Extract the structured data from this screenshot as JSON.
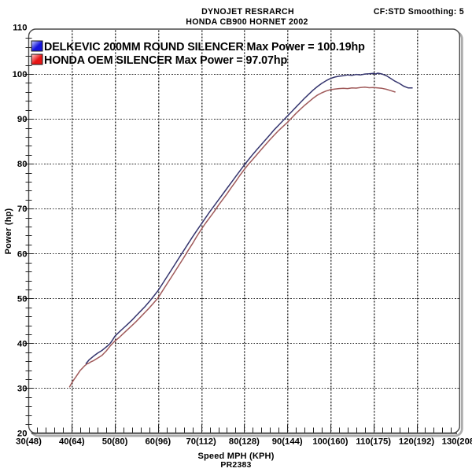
{
  "header": {
    "title_line1": "DYNOJET RESRARCH",
    "title_line2": "HONDA CB900 HORNET 2002",
    "top_right": "CF:STD Smoothing: 5"
  },
  "footer": {
    "code": "PR2383"
  },
  "legend": [
    {
      "label": "DELKEVIC 200MM ROUND SILENCER Max Power = 100.19hp",
      "swatch_color": "#1414dc",
      "swatch_light": "#ccd6ff"
    },
    {
      "label": "HONDA OEM SILENCER Max Power = 97.07hp",
      "swatch_color": "#e81616",
      "swatch_light": "#ffd2d2"
    }
  ],
  "axes": {
    "y_title": "Power (hp)",
    "x_title": "Speed MPH (KPH)",
    "y_ticks": [
      110,
      100,
      90,
      80,
      70,
      60,
      50,
      40,
      30,
      20
    ],
    "x_ticks": [
      {
        "mph": 30,
        "label": "30(48)"
      },
      {
        "mph": 40,
        "label": "40(64)"
      },
      {
        "mph": 50,
        "label": "50(80)"
      },
      {
        "mph": 60,
        "label": "60(96)"
      },
      {
        "mph": 70,
        "label": "70(112)"
      },
      {
        "mph": 80,
        "label": "80(128)"
      },
      {
        "mph": 90,
        "label": "90(144)"
      },
      {
        "mph": 100,
        "label": "100(160)"
      },
      {
        "mph": 110,
        "label": "110(175)"
      },
      {
        "mph": 120,
        "label": "120(192)"
      },
      {
        "mph": 130,
        "label": "130(208)"
      }
    ]
  },
  "chart_data": {
    "type": "line",
    "xlabel": "Speed MPH (KPH)",
    "ylabel": "Power (hp)",
    "xlim": [
      30,
      130
    ],
    "ylim": [
      20,
      110
    ],
    "x_major_step": 10,
    "y_major_step": 10,
    "x_minor_step": 2,
    "y_minor_step": 2,
    "grid": true,
    "legend_position": "top-left",
    "series": [
      {
        "name": "HONDA OEM SILENCER",
        "max_power_hp": 97.07,
        "color": "#a05a5a",
        "points": [
          [
            39.5,
            30.3
          ],
          [
            40,
            31.2
          ],
          [
            40.5,
            31.9
          ],
          [
            41,
            32.6
          ],
          [
            41.5,
            33.3
          ],
          [
            42,
            34.0
          ],
          [
            42.5,
            34.5
          ],
          [
            43,
            35.0
          ],
          [
            43.5,
            35.4
          ],
          [
            44,
            35.6
          ],
          [
            44.5,
            35.9
          ],
          [
            45,
            36.1
          ],
          [
            45.5,
            36.4
          ],
          [
            46,
            36.7
          ],
          [
            46.5,
            37.0
          ],
          [
            47,
            37.3
          ],
          [
            47.5,
            37.8
          ],
          [
            48,
            38.3
          ],
          [
            48.5,
            38.9
          ],
          [
            49,
            39.5
          ],
          [
            49.5,
            40.0
          ],
          [
            50,
            40.5
          ],
          [
            51,
            41.3
          ],
          [
            52,
            42.2
          ],
          [
            53,
            43.1
          ],
          [
            54,
            44.0
          ],
          [
            55,
            44.9
          ],
          [
            56,
            45.9
          ],
          [
            57,
            46.9
          ],
          [
            58,
            47.9
          ],
          [
            59,
            49.0
          ],
          [
            60,
            50.1
          ],
          [
            61,
            51.6
          ],
          [
            62,
            53.1
          ],
          [
            63,
            54.6
          ],
          [
            64,
            56.1
          ],
          [
            65,
            57.6
          ],
          [
            66,
            59.1
          ],
          [
            67,
            60.7
          ],
          [
            68,
            62.2
          ],
          [
            69,
            63.8
          ],
          [
            70,
            65.3
          ],
          [
            71,
            66.7
          ],
          [
            72,
            68.0
          ],
          [
            73,
            69.3
          ],
          [
            74,
            70.7
          ],
          [
            75,
            72.0
          ],
          [
            76,
            73.3
          ],
          [
            77,
            74.7
          ],
          [
            78,
            76.0
          ],
          [
            79,
            77.4
          ],
          [
            80,
            78.7
          ],
          [
            81,
            79.9
          ],
          [
            82,
            81.0
          ],
          [
            83,
            82.1
          ],
          [
            84,
            83.2
          ],
          [
            85,
            84.3
          ],
          [
            86,
            85.4
          ],
          [
            87,
            86.4
          ],
          [
            88,
            87.4
          ],
          [
            89,
            88.3
          ],
          [
            90,
            89.2
          ],
          [
            91,
            90.2
          ],
          [
            92,
            91.2
          ],
          [
            93,
            92.1
          ],
          [
            94,
            93.0
          ],
          [
            95,
            93.8
          ],
          [
            96,
            94.6
          ],
          [
            97,
            95.3
          ],
          [
            98,
            95.8
          ],
          [
            99,
            96.2
          ],
          [
            100,
            96.5
          ],
          [
            101,
            96.65
          ],
          [
            102,
            96.75
          ],
          [
            103,
            96.8
          ],
          [
            104,
            96.75
          ],
          [
            105,
            96.9
          ],
          [
            106,
            96.85
          ],
          [
            107,
            97.0
          ],
          [
            108,
            97.07
          ],
          [
            109,
            96.95
          ],
          [
            110,
            97.0
          ],
          [
            111,
            96.9
          ],
          [
            112,
            96.8
          ],
          [
            113,
            96.6
          ],
          [
            114,
            96.3
          ],
          [
            115,
            96.0
          ]
        ]
      },
      {
        "name": "DELKEVIC 200MM ROUND SILENCER",
        "max_power_hp": 100.19,
        "color": "#35356e",
        "points": [
          [
            43.3,
            35.5
          ],
          [
            44,
            36.3
          ],
          [
            45,
            37.1
          ],
          [
            46,
            37.8
          ],
          [
            47,
            38.4
          ],
          [
            47.5,
            38.8
          ],
          [
            48,
            39.2
          ],
          [
            48.5,
            39.6
          ],
          [
            49,
            40.1
          ],
          [
            49.5,
            40.8
          ],
          [
            50,
            41.6
          ],
          [
            51,
            42.5
          ],
          [
            52,
            43.4
          ],
          [
            53,
            44.3
          ],
          [
            54,
            45.2
          ],
          [
            55,
            46.2
          ],
          [
            56,
            47.2
          ],
          [
            57,
            48.2
          ],
          [
            58,
            49.3
          ],
          [
            59,
            50.5
          ],
          [
            60,
            51.7
          ],
          [
            61,
            53.2
          ],
          [
            62,
            54.7
          ],
          [
            63,
            56.2
          ],
          [
            64,
            57.7
          ],
          [
            65,
            59.2
          ],
          [
            66,
            60.7
          ],
          [
            67,
            62.2
          ],
          [
            68,
            63.7
          ],
          [
            69,
            65.1
          ],
          [
            70,
            66.5
          ],
          [
            71,
            67.9
          ],
          [
            72,
            69.3
          ],
          [
            73,
            70.6
          ],
          [
            74,
            71.9
          ],
          [
            75,
            73.2
          ],
          [
            76,
            74.5
          ],
          [
            77,
            75.8
          ],
          [
            78,
            77.1
          ],
          [
            79,
            78.4
          ],
          [
            80,
            79.7
          ],
          [
            81,
            80.9
          ],
          [
            82,
            82.1
          ],
          [
            83,
            83.2
          ],
          [
            84,
            84.3
          ],
          [
            85,
            85.4
          ],
          [
            86,
            86.5
          ],
          [
            87,
            87.6
          ],
          [
            88,
            88.6
          ],
          [
            89,
            89.6
          ],
          [
            90,
            90.6
          ],
          [
            91,
            91.6
          ],
          [
            92,
            92.6
          ],
          [
            93,
            93.6
          ],
          [
            94,
            94.6
          ],
          [
            95,
            95.5
          ],
          [
            96,
            96.4
          ],
          [
            97,
            97.2
          ],
          [
            98,
            97.9
          ],
          [
            99,
            98.5
          ],
          [
            100,
            99.0
          ],
          [
            101,
            99.3
          ],
          [
            102,
            99.5
          ],
          [
            103,
            99.6
          ],
          [
            104,
            99.8
          ],
          [
            105,
            99.7
          ],
          [
            106,
            99.9
          ],
          [
            107,
            99.8
          ],
          [
            108,
            100.0
          ],
          [
            109,
            100.05
          ],
          [
            110,
            100.15
          ],
          [
            110.5,
            100.0
          ],
          [
            111,
            100.19
          ],
          [
            111.5,
            100.1
          ],
          [
            112,
            100.0
          ],
          [
            113,
            99.6
          ],
          [
            114,
            99.0
          ],
          [
            115,
            98.4
          ],
          [
            116,
            97.9
          ],
          [
            117,
            97.3
          ],
          [
            118,
            96.9
          ],
          [
            119,
            96.9
          ]
        ]
      }
    ]
  }
}
